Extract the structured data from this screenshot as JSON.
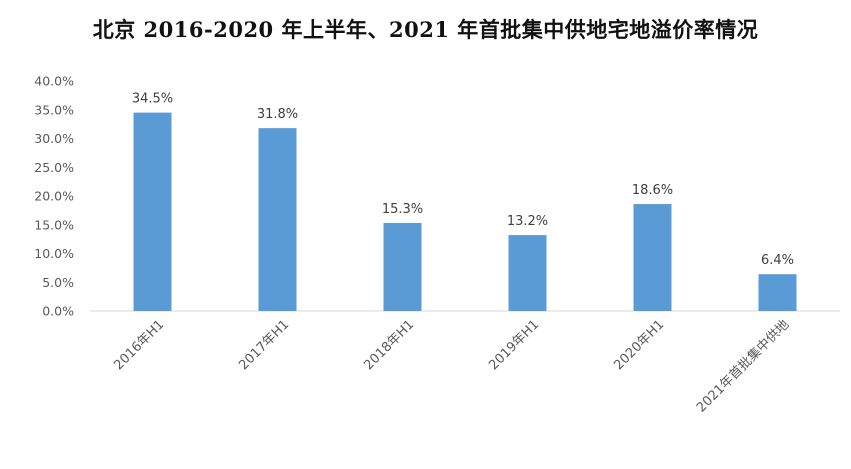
{
  "chart_data": {
    "type": "bar",
    "title": "北京 2016-2020 年上半年、2021 年首批集中供地宅地溢价率情况",
    "categories": [
      "2016年H1",
      "2017年H1",
      "2018年H1",
      "2019年H1",
      "2020年H1",
      "2021年首批集中供地"
    ],
    "values": [
      34.5,
      31.8,
      15.3,
      13.2,
      18.6,
      6.4
    ],
    "data_labels": [
      "34.5%",
      "31.8%",
      "15.3%",
      "13.2%",
      "18.6%",
      "6.4%"
    ],
    "yticks": [
      "0.0%",
      "5.0%",
      "10.0%",
      "15.0%",
      "20.0%",
      "25.0%",
      "30.0%",
      "35.0%",
      "40.0%"
    ],
    "ylim": [
      0,
      40
    ],
    "xlabel": "",
    "ylabel": "",
    "grid": false,
    "legend": "none",
    "bar_color": "#5B9BD5",
    "axis_color": "#D9D9D9"
  }
}
